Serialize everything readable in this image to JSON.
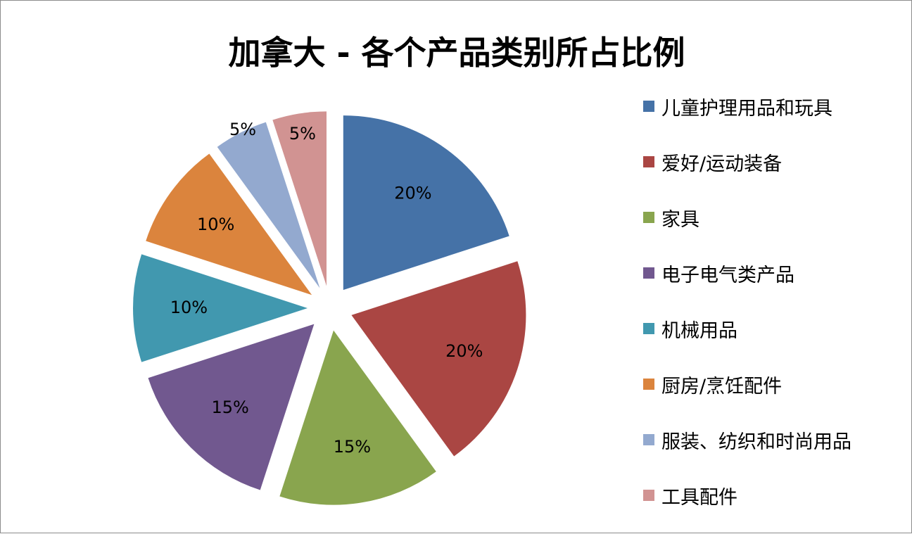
{
  "chart_data": {
    "type": "pie",
    "title": "加拿大 - 各个产品类别所占比例",
    "categories": [
      "儿童护理用品和玩具",
      "爱好/运动装备",
      "家具",
      "电子电气类产品",
      "机械用品",
      "厨房/烹饪配件",
      "服装、纺织和时尚用品",
      "工具配件"
    ],
    "values": [
      20,
      20,
      15,
      15,
      10,
      10,
      5,
      5
    ],
    "data_labels": [
      "20%",
      "20%",
      "15%",
      "15%",
      "10%",
      "10%",
      "5%",
      "5%"
    ],
    "colors": [
      "#4572A7",
      "#AA4643",
      "#89A54E",
      "#71588F",
      "#4198AF",
      "#DB843D",
      "#93A9CF",
      "#D19392"
    ],
    "exploded": true,
    "legend_position": "right"
  }
}
